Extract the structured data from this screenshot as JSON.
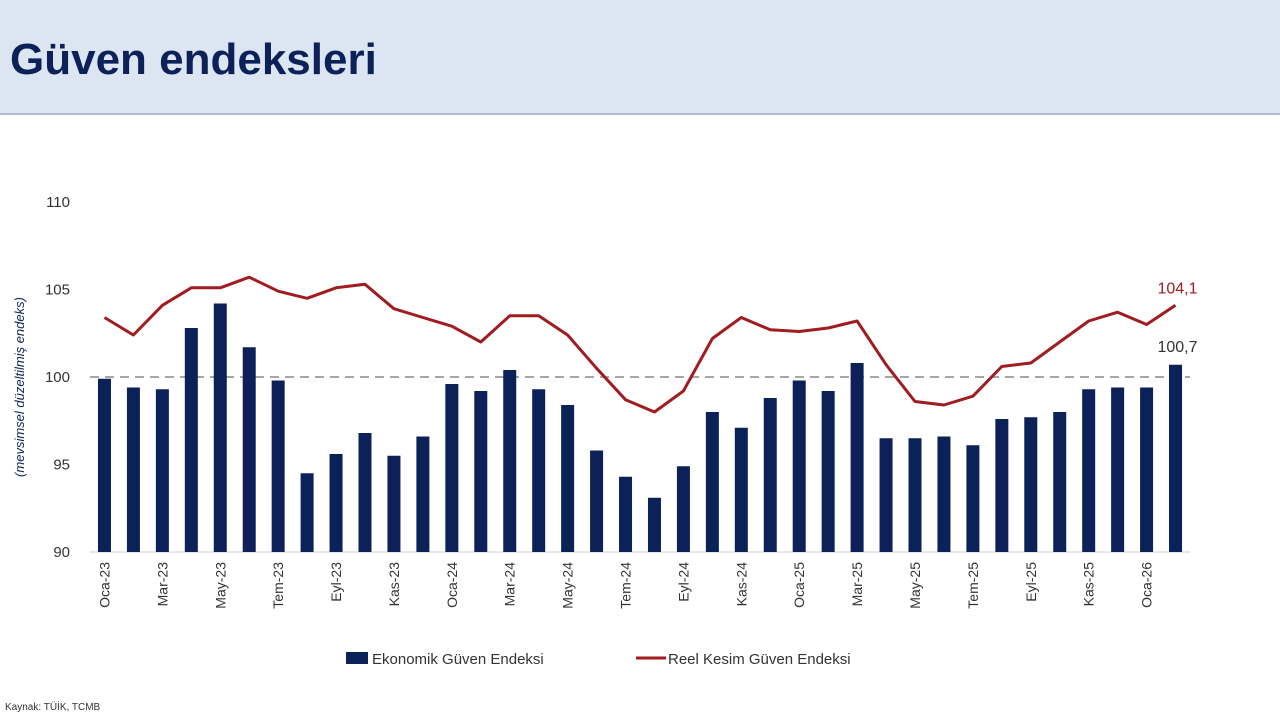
{
  "header": {
    "title": "Güven endeksleri"
  },
  "source": "Kaynak: TÜİK, TCMB",
  "chart_data": {
    "type": "bar",
    "title": "",
    "xlabel": "",
    "ylabel": "(mevsimsel düzeltilmiş endeks)",
    "ylim": [
      90,
      110
    ],
    "yticks": [
      90,
      95,
      100,
      105,
      110
    ],
    "reference_line": 100,
    "grid": false,
    "legend_position": "bottom",
    "categories": [
      "Oca-23",
      "Şub-23",
      "Mar-23",
      "Nis-23",
      "May-23",
      "Haz-23",
      "Tem-23",
      "Ağu-23",
      "Eyl-23",
      "Eki-23",
      "Kas-23",
      "Ara-23",
      "Oca-24",
      "Şub-24",
      "Mar-24",
      "Nis-24",
      "May-24",
      "Haz-24",
      "Tem-24",
      "Ağu-24",
      "Eyl-24",
      "Eki-24",
      "Kas-24",
      "Ara-24",
      "Oca-25",
      "Şub-25",
      "Mar-25",
      "Nis-25",
      "May-25",
      "Haz-25",
      "Tem-25",
      "Ağu-25",
      "Eyl-25",
      "Eki-25",
      "Kas-25",
      "Ara-25",
      "Oca-26",
      "Şub-26"
    ],
    "x_tick_labels": [
      "Oca-23",
      "",
      "Mar-23",
      "",
      "May-23",
      "",
      "Tem-23",
      "",
      "Eyl-23",
      "",
      "Kas-23",
      "",
      "Oca-24",
      "",
      "Mar-24",
      "",
      "May-24",
      "",
      "Tem-24",
      "",
      "Eyl-24",
      "",
      "Kas-24",
      "",
      "Oca-25",
      "",
      "Mar-25",
      "",
      "May-25",
      "",
      "Tem-25",
      "",
      "Eyl-25",
      "",
      "Kas-25",
      "",
      "Oca-26",
      ""
    ],
    "series": [
      {
        "name": "Ekonomik Güven Endeksi",
        "type": "bar",
        "color": "#0b2157",
        "values": [
          99.9,
          99.4,
          99.3,
          102.8,
          104.2,
          101.7,
          99.8,
          94.5,
          95.6,
          96.8,
          95.5,
          96.6,
          99.6,
          99.2,
          100.4,
          99.3,
          98.4,
          95.8,
          94.3,
          93.1,
          94.9,
          98.0,
          97.1,
          98.8,
          99.8,
          99.2,
          100.8,
          96.5,
          96.5,
          96.6,
          96.1,
          97.6,
          97.7,
          98.0,
          99.3,
          99.4,
          99.4,
          100.7
        ]
      },
      {
        "name": "Reel Kesim Güven Endeksi",
        "type": "line",
        "color": "#a01c20",
        "values": [
          103.4,
          102.4,
          104.1,
          105.1,
          105.1,
          105.7,
          104.9,
          104.5,
          105.1,
          105.3,
          103.9,
          103.4,
          102.9,
          102.0,
          103.5,
          103.5,
          102.4,
          100.5,
          98.7,
          98.0,
          99.2,
          102.2,
          103.4,
          102.7,
          102.6,
          102.8,
          103.2,
          100.7,
          98.6,
          98.4,
          98.9,
          100.6,
          100.8,
          102.0,
          103.2,
          103.7,
          103.0,
          104.1
        ]
      }
    ],
    "annotations": [
      {
        "series": "Reel Kesim Güven Endeksi",
        "category": "Şub-26",
        "label": "104,1",
        "color": "#a01c20"
      },
      {
        "series": "Ekonomik Güven Endeksi",
        "category": "Şub-26",
        "label": "100,7",
        "color": "#333333"
      }
    ]
  }
}
